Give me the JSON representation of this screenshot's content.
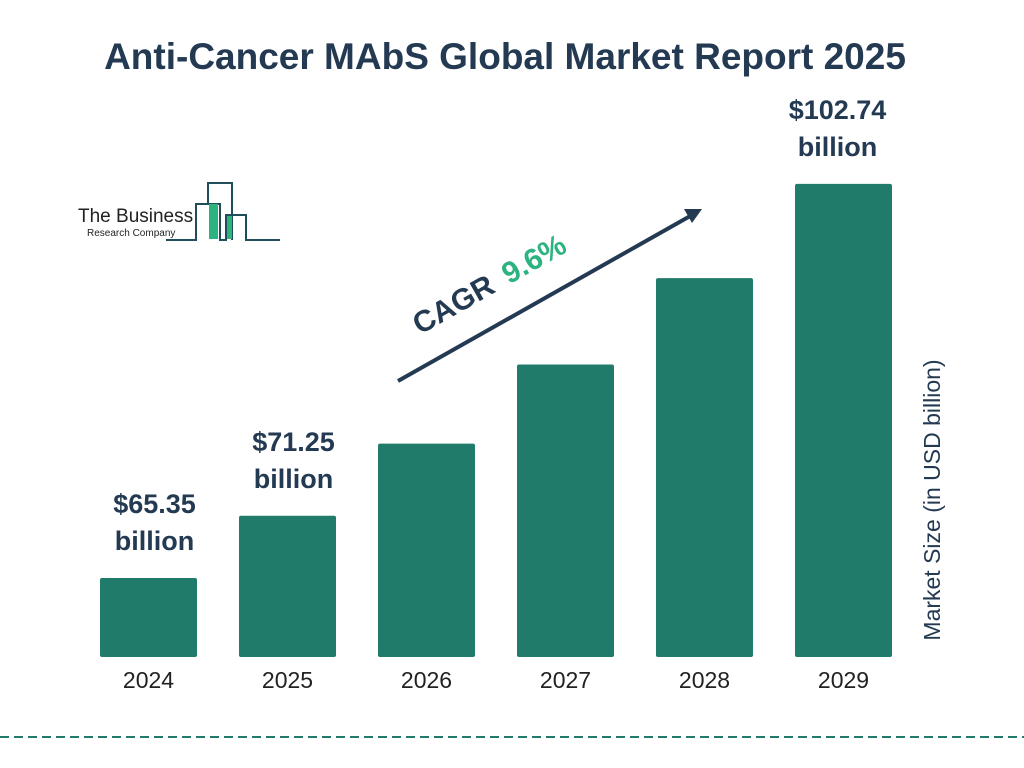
{
  "chart_data": {
    "type": "bar",
    "title": "Anti-Cancer MAbS Global Market Report 2025",
    "ylabel": "Market Size (in USD billion)",
    "categories": [
      "2024",
      "2025",
      "2026",
      "2027",
      "2028",
      "2029"
    ],
    "values": [
      65.35,
      71.25,
      78.1,
      85.6,
      93.8,
      102.74
    ],
    "data_labels": [
      {
        "index": 0,
        "line1": "$65.35",
        "line2": "billion"
      },
      {
        "index": 1,
        "line1": "$71.25",
        "line2": "billion"
      },
      {
        "index": 5,
        "line1": "$102.74",
        "line2": "billion"
      }
    ],
    "bar_color": "#217b6b",
    "grid": false,
    "annotation": {
      "label": "CAGR",
      "value": "9.6%",
      "value_color": "#2db37f",
      "arrow_color": "#233a52"
    }
  },
  "logo": {
    "line1": "The Business",
    "line2": "Research Company"
  }
}
